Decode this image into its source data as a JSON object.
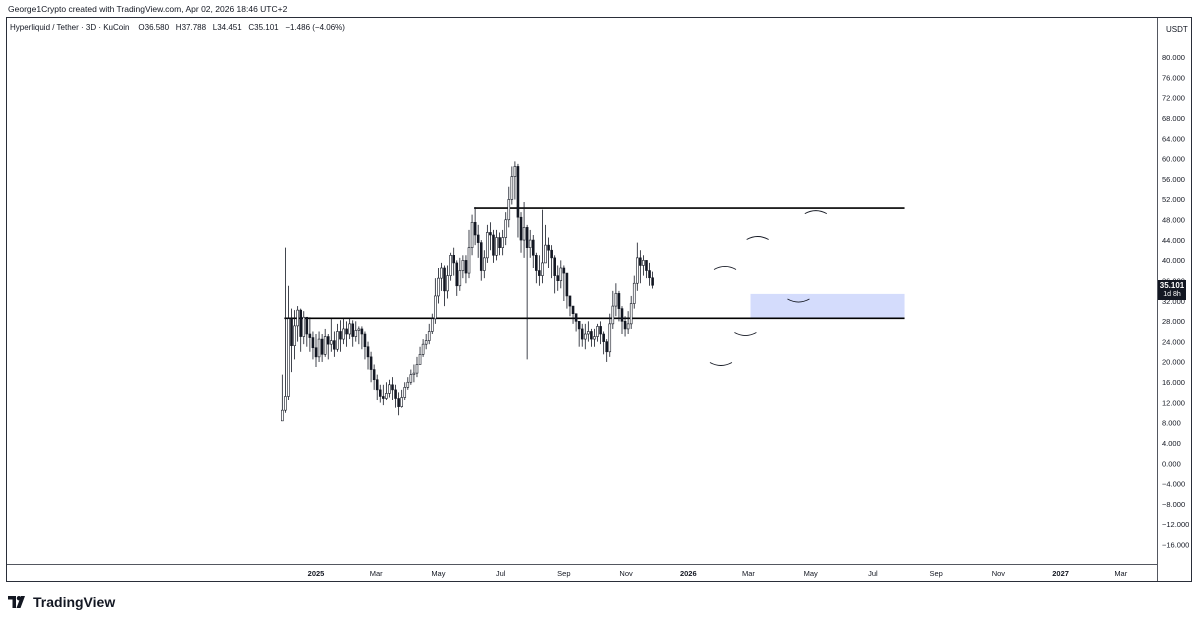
{
  "caption": "George1Crypto created with TradingView.com, Apr 02, 2026 18:46 UTC+2",
  "legend": {
    "symbol": "Hyperliquid / Tether · 3D · KuCoin",
    "open": "O36.580",
    "high": "H37.788",
    "low": "L34.451",
    "close": "C35.101",
    "change": "−1.486 (−4.06%)"
  },
  "price_scale": {
    "title": "USDT",
    "last_price": "35.101",
    "last_price_timer": "1d 8h"
  },
  "brand": "TradingView",
  "colors": {
    "candle": "#131722",
    "support_zone": "#c9d3fb",
    "background": "#ffffff"
  },
  "chart_data": {
    "type": "candlestick",
    "title": "Hyperliquid / Tether · 3D · KuCoin",
    "ylim": [
      -18,
      84
    ],
    "y_ticks": [
      "80.000",
      "76.000",
      "72.000",
      "68.000",
      "64.000",
      "60.000",
      "56.000",
      "52.000",
      "48.000",
      "44.000",
      "40.000",
      "36.000",
      "32.000",
      "28.000",
      "24.000",
      "20.000",
      "16.000",
      "12.000",
      "8.000",
      "4.000",
      "0.000",
      "−4.000",
      "−8.000",
      "−12.000",
      "−16.000"
    ],
    "x_ticks": [
      {
        "label": "2025",
        "date": "2025-01-01",
        "bold": true
      },
      {
        "label": "Mar",
        "date": "2025-03-01"
      },
      {
        "label": "May",
        "date": "2025-05-01"
      },
      {
        "label": "Jul",
        "date": "2025-07-01"
      },
      {
        "label": "Sep",
        "date": "2025-09-01"
      },
      {
        "label": "Nov",
        "date": "2025-11-01"
      },
      {
        "label": "2026",
        "date": "2026-01-01",
        "bold": true
      },
      {
        "label": "Mar",
        "date": "2026-03-01"
      },
      {
        "label": "May",
        "date": "2026-05-01"
      },
      {
        "label": "Jul",
        "date": "2026-07-01"
      },
      {
        "label": "Sep",
        "date": "2026-09-01"
      },
      {
        "label": "Nov",
        "date": "2026-11-01"
      },
      {
        "label": "2027",
        "date": "2027-01-01",
        "bold": true
      },
      {
        "label": "Mar",
        "date": "2027-03-01"
      }
    ],
    "series": [
      {
        "date_start": "2024-11-29",
        "interval_days": 3,
        "closes": [
          10.5,
          13.2,
          28.5,
          23.2,
          27.1,
          30.2,
          25.0,
          28.8,
          25.5,
          24.8,
          22.8,
          21.0,
          24.5,
          21.5,
          25.0,
          23.5,
          24.2,
          22.5,
          26.0,
          24.5,
          26.5,
          25.5,
          27.5,
          25.0,
          26.2,
          26.5,
          25.5,
          23.0,
          21.0,
          18.5,
          16.5,
          14.5,
          13.2,
          12.8,
          13.8,
          15.5,
          14.5,
          12.8,
          11.2,
          13.0,
          15.0,
          16.0,
          17.5,
          17.8,
          19.5,
          21.5,
          23.5,
          24.2,
          26.0,
          28.5,
          33.0,
          36.5,
          38.5,
          34.0,
          37.0,
          41.0,
          39.5,
          35.0,
          38.0,
          40.0,
          37.5,
          42.5,
          47.5,
          45.0,
          43.5,
          38.0,
          40.5,
          45.5,
          45.0,
          41.0,
          44.5,
          42.5,
          44.5,
          48.0,
          52.0,
          56.5,
          58.5,
          48.5,
          44.0,
          46.5,
          42.5,
          44.0,
          41.0,
          38.0,
          37.0,
          39.5,
          43.0,
          42.0,
          40.5,
          37.0,
          36.0,
          38.5,
          37.5,
          33.0,
          31.0,
          29.5,
          28.0,
          26.5,
          24.5,
          25.5,
          26.0,
          24.5,
          25.0,
          27.0,
          25.5,
          24.0,
          22.0,
          27.5,
          31.0,
          33.5,
          30.5,
          28.0,
          26.5,
          27.5,
          31.5,
          35.5,
          40.5,
          39.0,
          40.0,
          38.0,
          36.58,
          35.101
        ],
        "highs": [
          17.5,
          42.5,
          35.0,
          30.5,
          30.2,
          31.0,
          30.5,
          30.0,
          28.5,
          28.8,
          26.0,
          25.5,
          26.0,
          25.5,
          26.5,
          25.5,
          28.5,
          26.0,
          27.5,
          28.2,
          28.5,
          28.0,
          28.5,
          28.2,
          28.0,
          27.0,
          27.0,
          26.0,
          24.0,
          22.0,
          19.5,
          17.5,
          15.5,
          15.5,
          16.0,
          16.5,
          17.0,
          15.5,
          14.0,
          14.5,
          16.0,
          17.0,
          18.5,
          19.5,
          21.0,
          23.0,
          24.5,
          25.5,
          27.5,
          29.5,
          36.5,
          38.5,
          39.5,
          39.0,
          39.0,
          41.5,
          42.5,
          40.0,
          40.5,
          41.0,
          41.0,
          46.0,
          49.0,
          50.5,
          47.0,
          44.0,
          42.0,
          47.0,
          47.5,
          46.0,
          46.0,
          45.5,
          46.0,
          49.5,
          54.5,
          58.5,
          59.5,
          59.0,
          49.5,
          51.5,
          47.0,
          46.0,
          45.0,
          41.5,
          41.0,
          50.0,
          47.0,
          44.5,
          43.0,
          41.0,
          39.0,
          40.0,
          39.0,
          37.0,
          33.0,
          31.0,
          29.5,
          28.0,
          27.5,
          27.5,
          28.0,
          26.5,
          26.5,
          27.5,
          28.0,
          26.0,
          24.5,
          29.5,
          34.0,
          35.5,
          34.0,
          31.0,
          29.0,
          30.0,
          33.0,
          37.0,
          43.5,
          42.0,
          41.0,
          40.0,
          39.5,
          37.788
        ],
        "lows": [
          9.8,
          10.0,
          12.5,
          18.0,
          20.5,
          24.0,
          22.0,
          23.5,
          23.0,
          22.0,
          20.5,
          19.0,
          20.0,
          20.0,
          21.0,
          20.5,
          22.0,
          21.0,
          22.0,
          22.0,
          23.5,
          23.0,
          24.5,
          23.0,
          24.0,
          23.5,
          22.5,
          20.5,
          18.5,
          16.0,
          14.5,
          12.5,
          12.0,
          11.5,
          12.5,
          13.0,
          12.5,
          11.0,
          9.5,
          11.0,
          12.5,
          14.5,
          15.5,
          16.0,
          17.0,
          19.5,
          21.0,
          22.5,
          23.5,
          25.5,
          27.5,
          31.5,
          34.0,
          31.0,
          32.5,
          36.0,
          37.0,
          33.0,
          34.0,
          36.5,
          35.5,
          36.5,
          41.0,
          43.0,
          40.5,
          36.0,
          36.5,
          39.5,
          42.0,
          39.5,
          40.0,
          41.0,
          41.0,
          43.0,
          46.5,
          51.0,
          52.0,
          44.5,
          41.5,
          40.5,
          20.5,
          40.5,
          38.5,
          35.5,
          35.0,
          35.5,
          39.5,
          38.5,
          36.5,
          33.5,
          34.0,
          34.5,
          32.0,
          30.5,
          29.0,
          27.5,
          26.0,
          23.0,
          23.0,
          22.5,
          24.0,
          23.0,
          23.0,
          24.0,
          23.5,
          21.5,
          20.0,
          21.0,
          26.5,
          29.0,
          28.0,
          25.5,
          25.0,
          25.5,
          26.5,
          30.5,
          34.0,
          35.5,
          37.0,
          36.5,
          35.0,
          34.451
        ]
      }
    ],
    "annotations": [
      {
        "kind": "horizontal_line",
        "price": 50.3,
        "from": "2025-06-05",
        "to": "2026-08-01"
      },
      {
        "kind": "horizontal_line",
        "price": 28.6,
        "from": "2024-12-01",
        "to": "2026-08-01"
      },
      {
        "kind": "zone",
        "price_low": 28.6,
        "price_high": 33.4,
        "from": "2026-03-03",
        "to": "2026-08-01"
      },
      {
        "kind": "arc",
        "date": "2026-02-02",
        "price": 19.3,
        "direction": "down"
      },
      {
        "kind": "arc",
        "date": "2026-02-06",
        "price": 38.8,
        "direction": "up"
      },
      {
        "kind": "arc",
        "date": "2026-02-26",
        "price": 25.2,
        "direction": "down"
      },
      {
        "kind": "arc",
        "date": "2026-03-10",
        "price": 44.7,
        "direction": "up"
      },
      {
        "kind": "arc",
        "date": "2026-04-19",
        "price": 31.8,
        "direction": "down"
      },
      {
        "kind": "arc",
        "date": "2026-05-06",
        "price": 49.8,
        "direction": "up"
      }
    ]
  }
}
